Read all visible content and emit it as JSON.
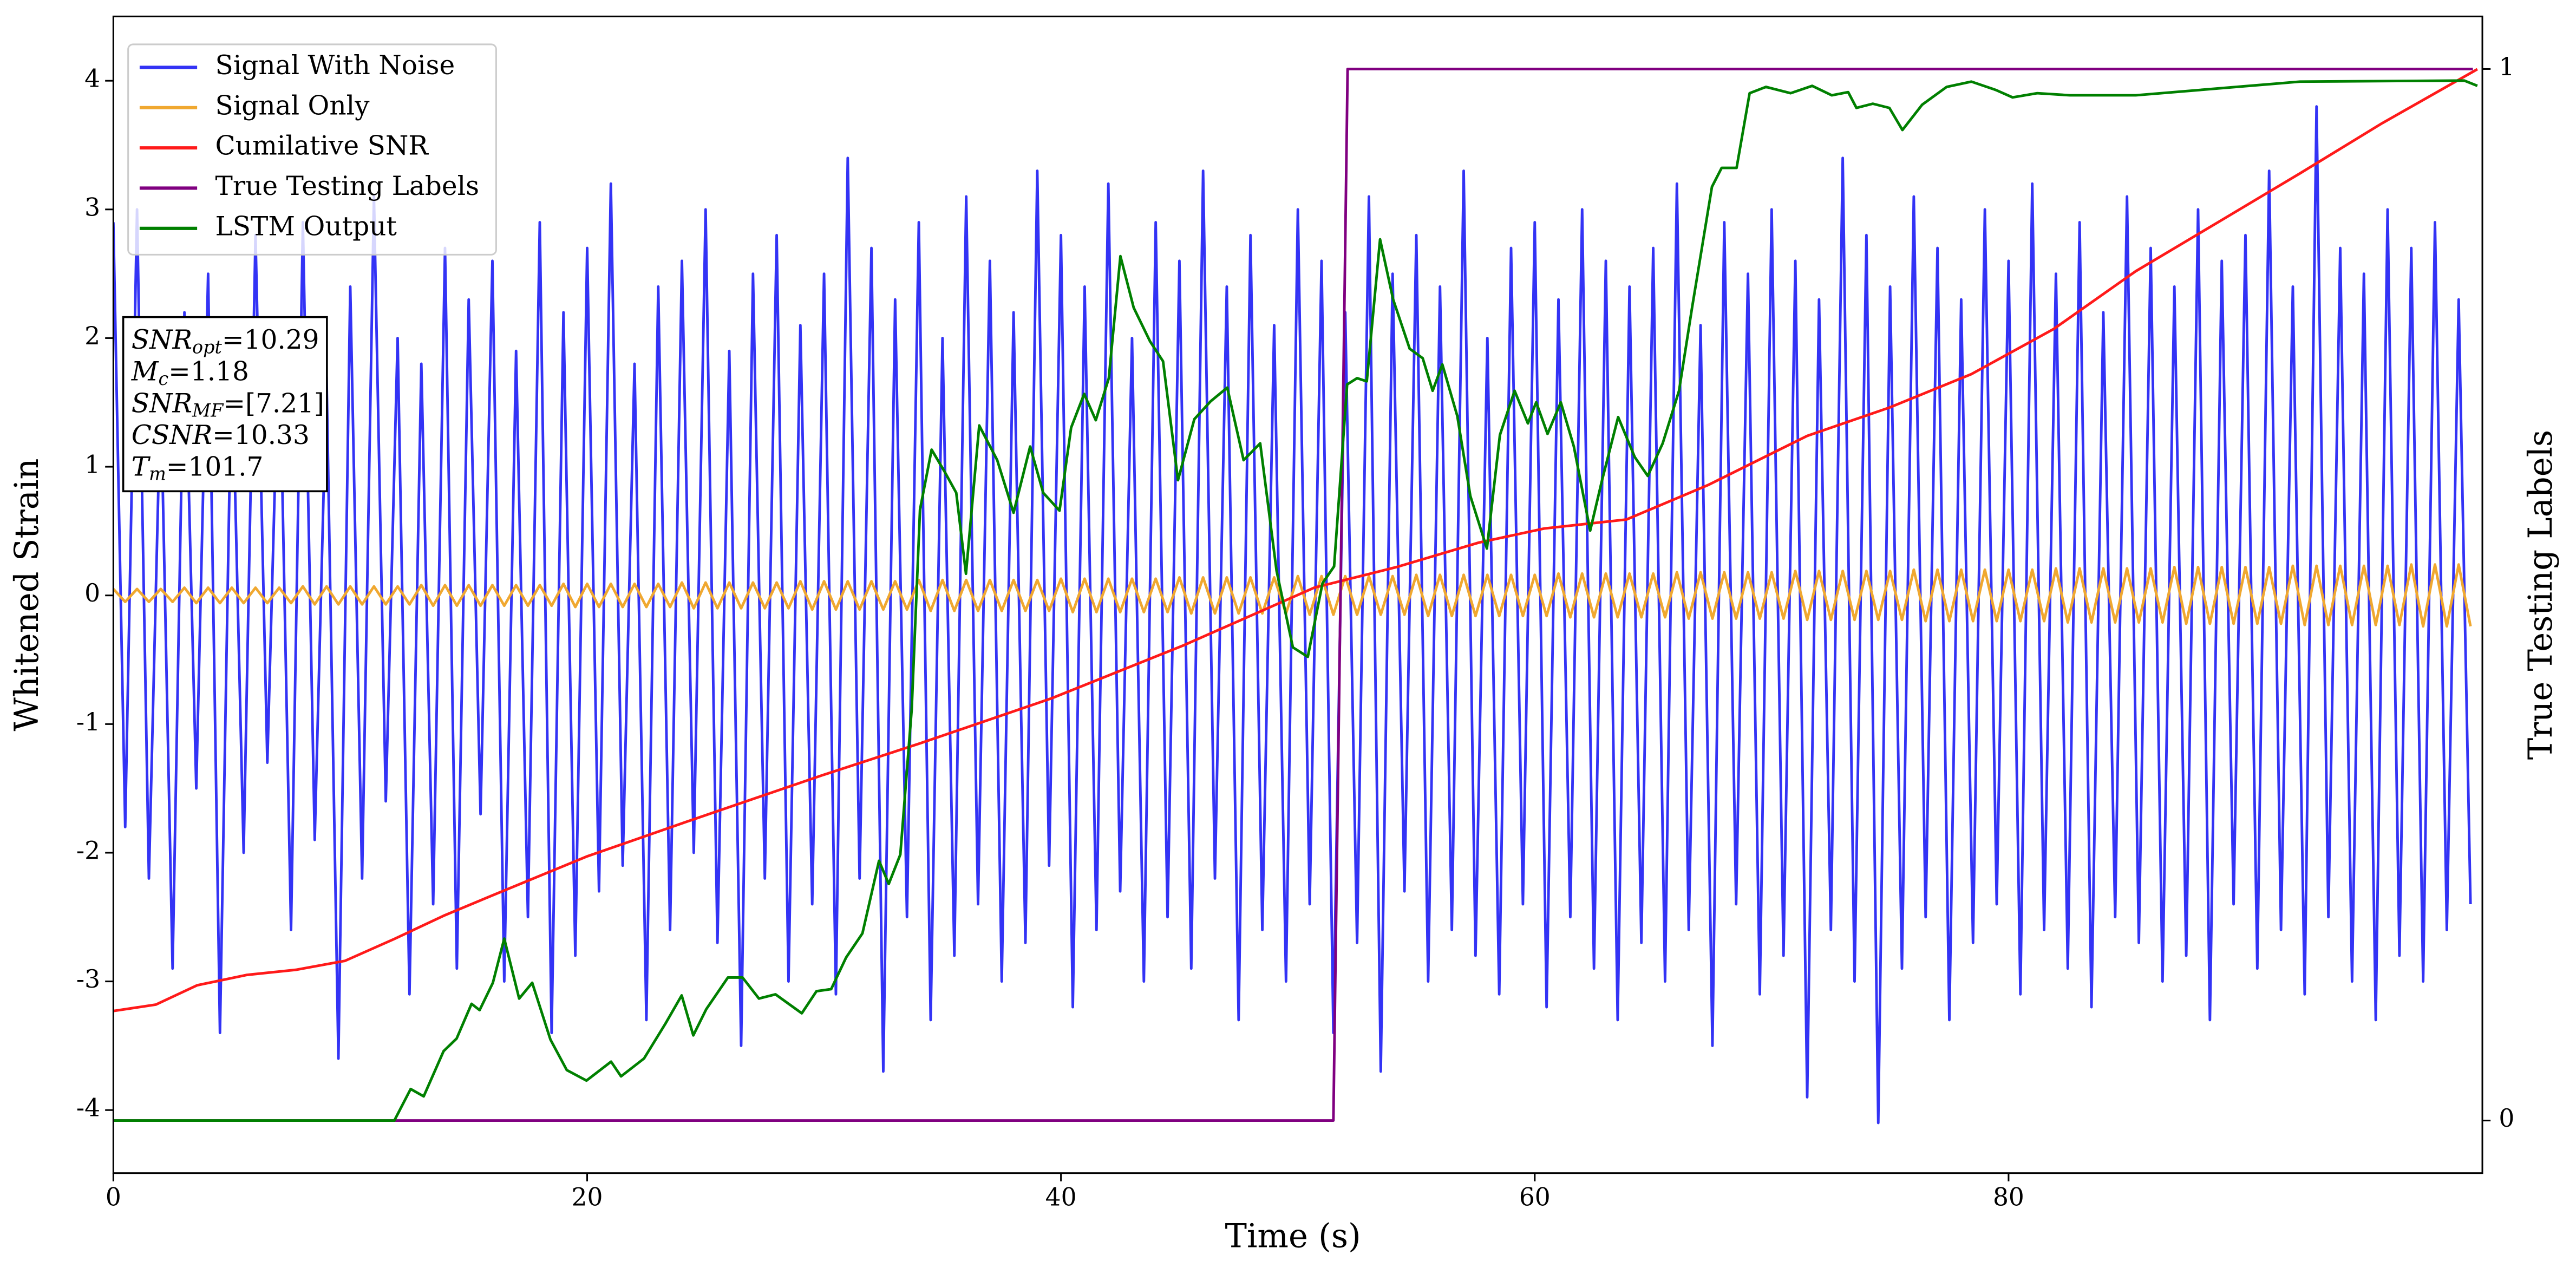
{
  "chart_data": {
    "type": "line",
    "xlabel": "Time (s)",
    "ylabel": "Whitened Strain",
    "y2label": "True Testing Labels",
    "xlim": [
      0,
      100
    ],
    "xticks": [
      0,
      20,
      40,
      60,
      80
    ],
    "ylim": [
      -4.49,
      4.5
    ],
    "yticks": [
      -4,
      -3,
      -2,
      -1,
      0,
      1,
      2,
      3,
      4
    ],
    "y2lim": [
      -0.05,
      1.05
    ],
    "y2ticks": [
      0,
      1
    ],
    "legend": "upper left",
    "annotation": [
      {
        "name": "SNR",
        "sub": "opt",
        "text": "=10.29"
      },
      {
        "name": "M",
        "sub": "c",
        "text": "=1.18"
      },
      {
        "name": "SNR",
        "sub": "MF",
        "text": "=[7.21]"
      },
      {
        "name": "CSNR",
        "text": "=10.33"
      },
      {
        "name": "T",
        "sub": "m",
        "text": "=101.7"
      }
    ],
    "x": [
      0,
      0.5,
      1,
      1.5,
      2,
      2.5,
      3,
      3.5,
      4,
      4.5,
      5,
      5.5,
      6,
      6.5,
      7,
      7.5,
      8,
      8.5,
      9,
      9.5,
      10,
      10.5,
      11,
      11.5,
      12,
      12.5,
      13,
      13.5,
      14,
      14.5,
      15,
      15.5,
      16,
      16.5,
      17,
      17.5,
      18,
      18.5,
      19,
      19.5,
      20,
      20.5,
      21,
      21.5,
      22,
      22.5,
      23,
      23.5,
      24,
      24.5,
      25,
      25.5,
      26,
      26.5,
      27,
      27.5,
      28,
      28.5,
      29,
      29.5,
      30,
      30.5,
      31,
      31.5,
      32,
      32.5,
      33,
      33.5,
      34,
      34.5,
      35,
      35.5,
      36,
      36.5,
      37,
      37.5,
      38,
      38.5,
      39,
      39.5,
      40,
      40.5,
      41,
      41.5,
      42,
      42.5,
      43,
      43.5,
      44,
      44.5,
      45,
      45.5,
      46,
      46.5,
      47,
      47.5,
      48,
      48.5,
      49,
      49.5,
      50,
      50.5,
      51,
      51.5,
      52,
      52.5,
      53,
      53.5,
      54,
      54.5,
      55,
      55.5,
      56,
      56.5,
      57,
      57.5,
      58,
      58.5,
      59,
      59.5,
      60,
      60.5,
      61,
      61.5,
      62,
      62.5,
      63,
      63.5,
      64,
      64.5,
      65,
      65.5,
      66,
      66.5,
      67,
      67.5,
      68,
      68.5,
      69,
      69.5,
      70,
      70.5,
      71,
      71.5,
      72,
      72.5,
      73,
      73.5,
      74,
      74.5,
      75,
      75.5,
      76,
      76.5,
      77,
      77.5,
      78,
      78.5,
      79,
      79.5,
      80,
      80.5,
      81,
      81.5,
      82,
      82.5,
      83,
      83.5,
      84,
      84.5,
      85,
      85.5,
      86,
      86.5,
      87,
      87.5,
      88,
      88.5,
      89,
      89.5,
      90,
      90.5,
      91,
      91.5,
      92,
      92.5,
      93,
      93.5,
      94,
      94.5,
      95,
      95.5,
      96,
      96.5,
      97,
      97.5,
      98,
      98.5,
      99,
      99.5
    ],
    "series": [
      {
        "name": "Signal With Noise",
        "color": "#3333f5",
        "values": [
          2.9,
          -1.8,
          3.0,
          -2.2,
          1.6,
          -2.9,
          2.2,
          -1.5,
          2.5,
          -3.4,
          1.9,
          -2.0,
          2.8,
          -1.3,
          2.1,
          -2.6,
          2.9,
          -1.9,
          1.7,
          -3.6,
          2.4,
          -2.2,
          3.1,
          -1.6,
          2.0,
          -3.1,
          1.8,
          -2.4,
          2.7,
          -2.9,
          2.3,
          -1.7,
          2.6,
          -3.0,
          1.9,
          -2.5,
          2.9,
          -3.4,
          2.2,
          -2.8,
          2.7,
          -2.3,
          3.2,
          -2.1,
          1.8,
          -3.3,
          2.4,
          -2.6,
          2.6,
          -2.0,
          3.0,
          -2.7,
          1.9,
          -3.5,
          2.5,
          -2.2,
          2.8,
          -3.0,
          2.1,
          -2.4,
          2.5,
          -3.1,
          3.4,
          -2.2,
          2.7,
          -3.7,
          2.3,
          -2.5,
          2.9,
          -3.3,
          2.0,
          -2.8,
          3.1,
          -2.4,
          2.6,
          -3.0,
          2.2,
          -2.7,
          3.3,
          -2.1,
          2.8,
          -3.2,
          2.4,
          -2.6,
          3.2,
          -2.3,
          2.0,
          -3.0,
          2.9,
          -2.5,
          2.6,
          -2.9,
          3.3,
          -2.2,
          2.4,
          -3.3,
          2.8,
          -2.6,
          2.1,
          -3.0,
          3.0,
          -2.4,
          2.6,
          -3.4,
          2.2,
          -2.7,
          3.1,
          -3.7,
          2.5,
          -2.3,
          2.8,
          -3.0,
          2.4,
          -2.6,
          3.3,
          -2.8,
          2.0,
          -3.1,
          2.7,
          -2.4,
          2.9,
          -3.2,
          2.3,
          -2.5,
          3.0,
          -2.9,
          2.6,
          -3.3,
          2.4,
          -2.7,
          2.7,
          -3.0,
          3.2,
          -2.6,
          2.1,
          -3.5,
          2.9,
          -2.4,
          2.5,
          -3.1,
          3.0,
          -2.8,
          2.6,
          -3.9,
          2.3,
          -2.6,
          3.4,
          -3.0,
          2.8,
          -4.1,
          2.4,
          -2.9,
          3.1,
          -2.5,
          2.7,
          -3.3,
          2.3,
          -2.7,
          3.0,
          -2.4,
          2.6,
          -3.1,
          3.2,
          -2.6,
          2.5,
          -2.9,
          2.9,
          -3.2,
          2.2,
          -2.5,
          3.1,
          -2.7,
          2.7,
          -3.0,
          2.4,
          -2.8,
          3.0,
          -3.3,
          2.6,
          -2.4,
          2.8,
          -2.9,
          3.3,
          -2.6,
          2.4,
          -3.1,
          3.8,
          -2.5,
          2.7,
          -3.0,
          2.5,
          -3.3,
          3.0,
          -2.8,
          2.7,
          -3.0,
          2.9,
          -2.6,
          2.3,
          -2.4
        ]
      },
      {
        "name": "Signal Only",
        "color": "#f0a830",
        "values": [
          0.05,
          -0.05,
          0.05,
          -0.05,
          0.05,
          -0.05,
          0.06,
          -0.06,
          0.06,
          -0.06,
          0.06,
          -0.06,
          0.06,
          -0.06,
          0.06,
          -0.06,
          0.07,
          -0.07,
          0.07,
          -0.07,
          0.07,
          -0.07,
          0.07,
          -0.07,
          0.07,
          -0.07,
          0.08,
          -0.08,
          0.08,
          -0.08,
          0.08,
          -0.08,
          0.08,
          -0.08,
          0.08,
          -0.08,
          0.08,
          -0.08,
          0.09,
          -0.09,
          0.09,
          -0.09,
          0.09,
          -0.09,
          0.09,
          -0.09,
          0.09,
          -0.09,
          0.1,
          -0.1,
          0.1,
          -0.1,
          0.1,
          -0.1,
          0.1,
          -0.1,
          0.1,
          -0.1,
          0.11,
          -0.11,
          0.11,
          -0.11,
          0.11,
          -0.11,
          0.11,
          -0.11,
          0.11,
          -0.11,
          0.12,
          -0.12,
          0.12,
          -0.12,
          0.12,
          -0.12,
          0.12,
          -0.12,
          0.12,
          -0.12,
          0.12,
          -0.12,
          0.13,
          -0.13,
          0.13,
          -0.13,
          0.13,
          -0.13,
          0.13,
          -0.13,
          0.13,
          -0.13,
          0.14,
          -0.14,
          0.14,
          -0.14,
          0.14,
          -0.14,
          0.14,
          -0.14,
          0.14,
          -0.14,
          0.15,
          -0.15,
          0.15,
          -0.15,
          0.15,
          -0.15,
          0.15,
          -0.15,
          0.15,
          -0.15,
          0.16,
          -0.16,
          0.16,
          -0.16,
          0.16,
          -0.16,
          0.16,
          -0.16,
          0.16,
          -0.16,
          0.16,
          -0.16,
          0.17,
          -0.17,
          0.17,
          -0.17,
          0.17,
          -0.17,
          0.17,
          -0.17,
          0.17,
          -0.17,
          0.18,
          -0.18,
          0.18,
          -0.18,
          0.18,
          -0.18,
          0.18,
          -0.18,
          0.18,
          -0.18,
          0.19,
          -0.19,
          0.19,
          -0.19,
          0.19,
          -0.19,
          0.19,
          -0.19,
          0.19,
          -0.19,
          0.2,
          -0.2,
          0.2,
          -0.2,
          0.2,
          -0.2,
          0.2,
          -0.2,
          0.2,
          -0.2,
          0.2,
          -0.2,
          0.21,
          -0.21,
          0.21,
          -0.21,
          0.21,
          -0.21,
          0.21,
          -0.21,
          0.21,
          -0.21,
          0.22,
          -0.22,
          0.22,
          -0.22,
          0.22,
          -0.22,
          0.22,
          -0.22,
          0.22,
          -0.22,
          0.23,
          -0.23,
          0.23,
          -0.23,
          0.23,
          -0.23,
          0.23,
          -0.23,
          0.23,
          -0.23,
          0.24,
          -0.24,
          0.24,
          -0.24,
          0.24,
          -0.24
        ]
      },
      {
        "name": "Cumilative SNR",
        "color": "#ff1a1a",
        "x": [
          0,
          1.8,
          3.54,
          5.62,
          7.7,
          9.78,
          11.86,
          13.94,
          16.02,
          19.97,
          24.34,
          29.89,
          34.05,
          39.6,
          45.15,
          50.69,
          54.16,
          57.63,
          60.4,
          63.87,
          67.34,
          71.5,
          74.97,
          78.43,
          81.9,
          85.37,
          88.84,
          92.3,
          95.77,
          99.79
        ],
        "values": [
          -3.23,
          -3.18,
          -3.03,
          -2.95,
          -2.91,
          -2.84,
          -2.67,
          -2.49,
          -2.33,
          -2.03,
          -1.75,
          -1.4,
          -1.15,
          -0.8,
          -0.39,
          0.06,
          0.22,
          0.41,
          0.52,
          0.59,
          0.86,
          1.24,
          1.46,
          1.72,
          2.07,
          2.52,
          2.9,
          3.28,
          3.67,
          4.09
        ]
      },
      {
        "name": "True Testing Labels",
        "color": "#800080",
        "axis": "y2",
        "x": [
          0,
          51.5,
          52.1,
          99.6
        ],
        "values": [
          0,
          0,
          1,
          1
        ]
      },
      {
        "name": "LSTM Output",
        "color": "#008000",
        "axis": "y2",
        "x": [
          0,
          11.86,
          12.55,
          13.1,
          13.94,
          14.49,
          15.12,
          15.46,
          16.02,
          16.5,
          17.13,
          17.68,
          18.45,
          19.14,
          19.97,
          21.01,
          21.43,
          22.4,
          23.3,
          23.99,
          24.48,
          25.03,
          25.94,
          26.56,
          27.25,
          27.95,
          29.06,
          29.68,
          30.3,
          30.93,
          31.62,
          32.32,
          32.73,
          33.22,
          33.7,
          34.05,
          34.54,
          35.09,
          35.58,
          35.99,
          36.55,
          37.31,
          38.0,
          38.7,
          39.25,
          39.94,
          40.43,
          40.98,
          41.47,
          42.02,
          42.51,
          43.07,
          43.76,
          44.31,
          44.94,
          45.63,
          46.32,
          47.02,
          47.71,
          48.41,
          49.1,
          49.79,
          50.42,
          51.04,
          51.53,
          52.08,
          52.5,
          52.91,
          53.47,
          54.02,
          54.72,
          55.27,
          55.69,
          56.1,
          56.73,
          57.28,
          57.98,
          58.53,
          59.15,
          59.71,
          60.06,
          60.54,
          61.1,
          61.65,
          62.34,
          62.83,
          63.52,
          64.22,
          64.77,
          65.4,
          66.09,
          66.64,
          67.48,
          67.89,
          68.52,
          69.07,
          69.76,
          70.8,
          71.71,
          72.54,
          73.23,
          73.58,
          74.27,
          74.97,
          75.52,
          76.35,
          77.39,
          78.43,
          79.47,
          80.17,
          81.21,
          82.59,
          85.37,
          92.3,
          99.24,
          99.79
        ],
        "values": [
          0,
          0,
          0.03,
          0.023,
          0.066,
          0.078,
          0.111,
          0.105,
          0.131,
          0.173,
          0.116,
          0.131,
          0.077,
          0.048,
          0.038,
          0.056,
          0.042,
          0.059,
          0.092,
          0.119,
          0.081,
          0.106,
          0.136,
          0.136,
          0.116,
          0.12,
          0.102,
          0.123,
          0.125,
          0.155,
          0.178,
          0.247,
          0.225,
          0.253,
          0.391,
          0.581,
          0.638,
          0.617,
          0.597,
          0.52,
          0.661,
          0.628,
          0.578,
          0.641,
          0.597,
          0.58,
          0.659,
          0.691,
          0.666,
          0.706,
          0.822,
          0.773,
          0.741,
          0.722,
          0.609,
          0.667,
          0.684,
          0.697,
          0.628,
          0.644,
          0.523,
          0.45,
          0.441,
          0.511,
          0.527,
          0.7,
          0.706,
          0.703,
          0.838,
          0.781,
          0.734,
          0.725,
          0.694,
          0.719,
          0.67,
          0.594,
          0.544,
          0.652,
          0.694,
          0.663,
          0.683,
          0.653,
          0.683,
          0.641,
          0.561,
          0.608,
          0.669,
          0.631,
          0.613,
          0.644,
          0.694,
          0.773,
          0.888,
          0.906,
          0.906,
          0.977,
          0.983,
          0.977,
          0.984,
          0.975,
          0.978,
          0.963,
          0.967,
          0.963,
          0.942,
          0.966,
          0.983,
          0.988,
          0.98,
          0.973,
          0.977,
          0.975,
          0.975,
          0.988,
          0.989,
          0.984
        ]
      }
    ]
  }
}
